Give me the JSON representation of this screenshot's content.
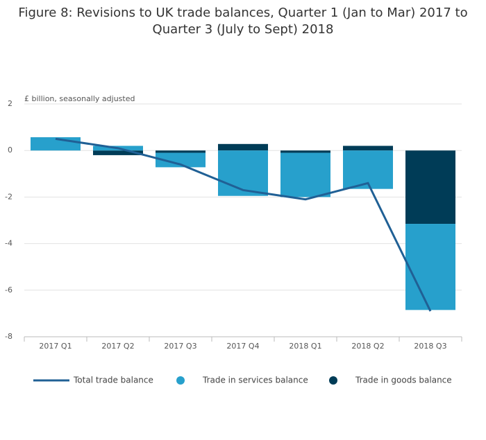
{
  "chart_data": {
    "type": "bar",
    "title": "Figure 8: Revisions to UK trade balances, Quarter 1 (Jan to Mar) 2017 to Quarter 3 (July to Sept) 2018",
    "y_label": "£ billion, seasonally adjusted",
    "categories": [
      "2017 Q1",
      "2017 Q2",
      "2017 Q3",
      "2017 Q4",
      "2018 Q1",
      "2018 Q2",
      "2018 Q3"
    ],
    "series": [
      {
        "name": "Total trade balance",
        "type": "line",
        "color": "#206095",
        "values": [
          0.5,
          0.1,
          -0.6,
          -1.7,
          -2.1,
          -1.4,
          -6.9
        ]
      },
      {
        "name": "Trade in services balance",
        "type": "bar",
        "color": "#27a0cc",
        "values": [
          0.57,
          0.2,
          -0.62,
          -1.95,
          -1.9,
          -1.65,
          -3.7
        ]
      },
      {
        "name": "Trade in goods balance",
        "type": "bar",
        "color": "#003c57",
        "values": [
          0,
          -0.2,
          -0.1,
          0.28,
          -0.1,
          0.2,
          -3.15
        ]
      }
    ],
    "ylim": [
      -8,
      2
    ],
    "yticks": [
      2,
      0,
      -2,
      -4,
      -6,
      -8
    ],
    "grid": true,
    "legend": "bottom"
  }
}
